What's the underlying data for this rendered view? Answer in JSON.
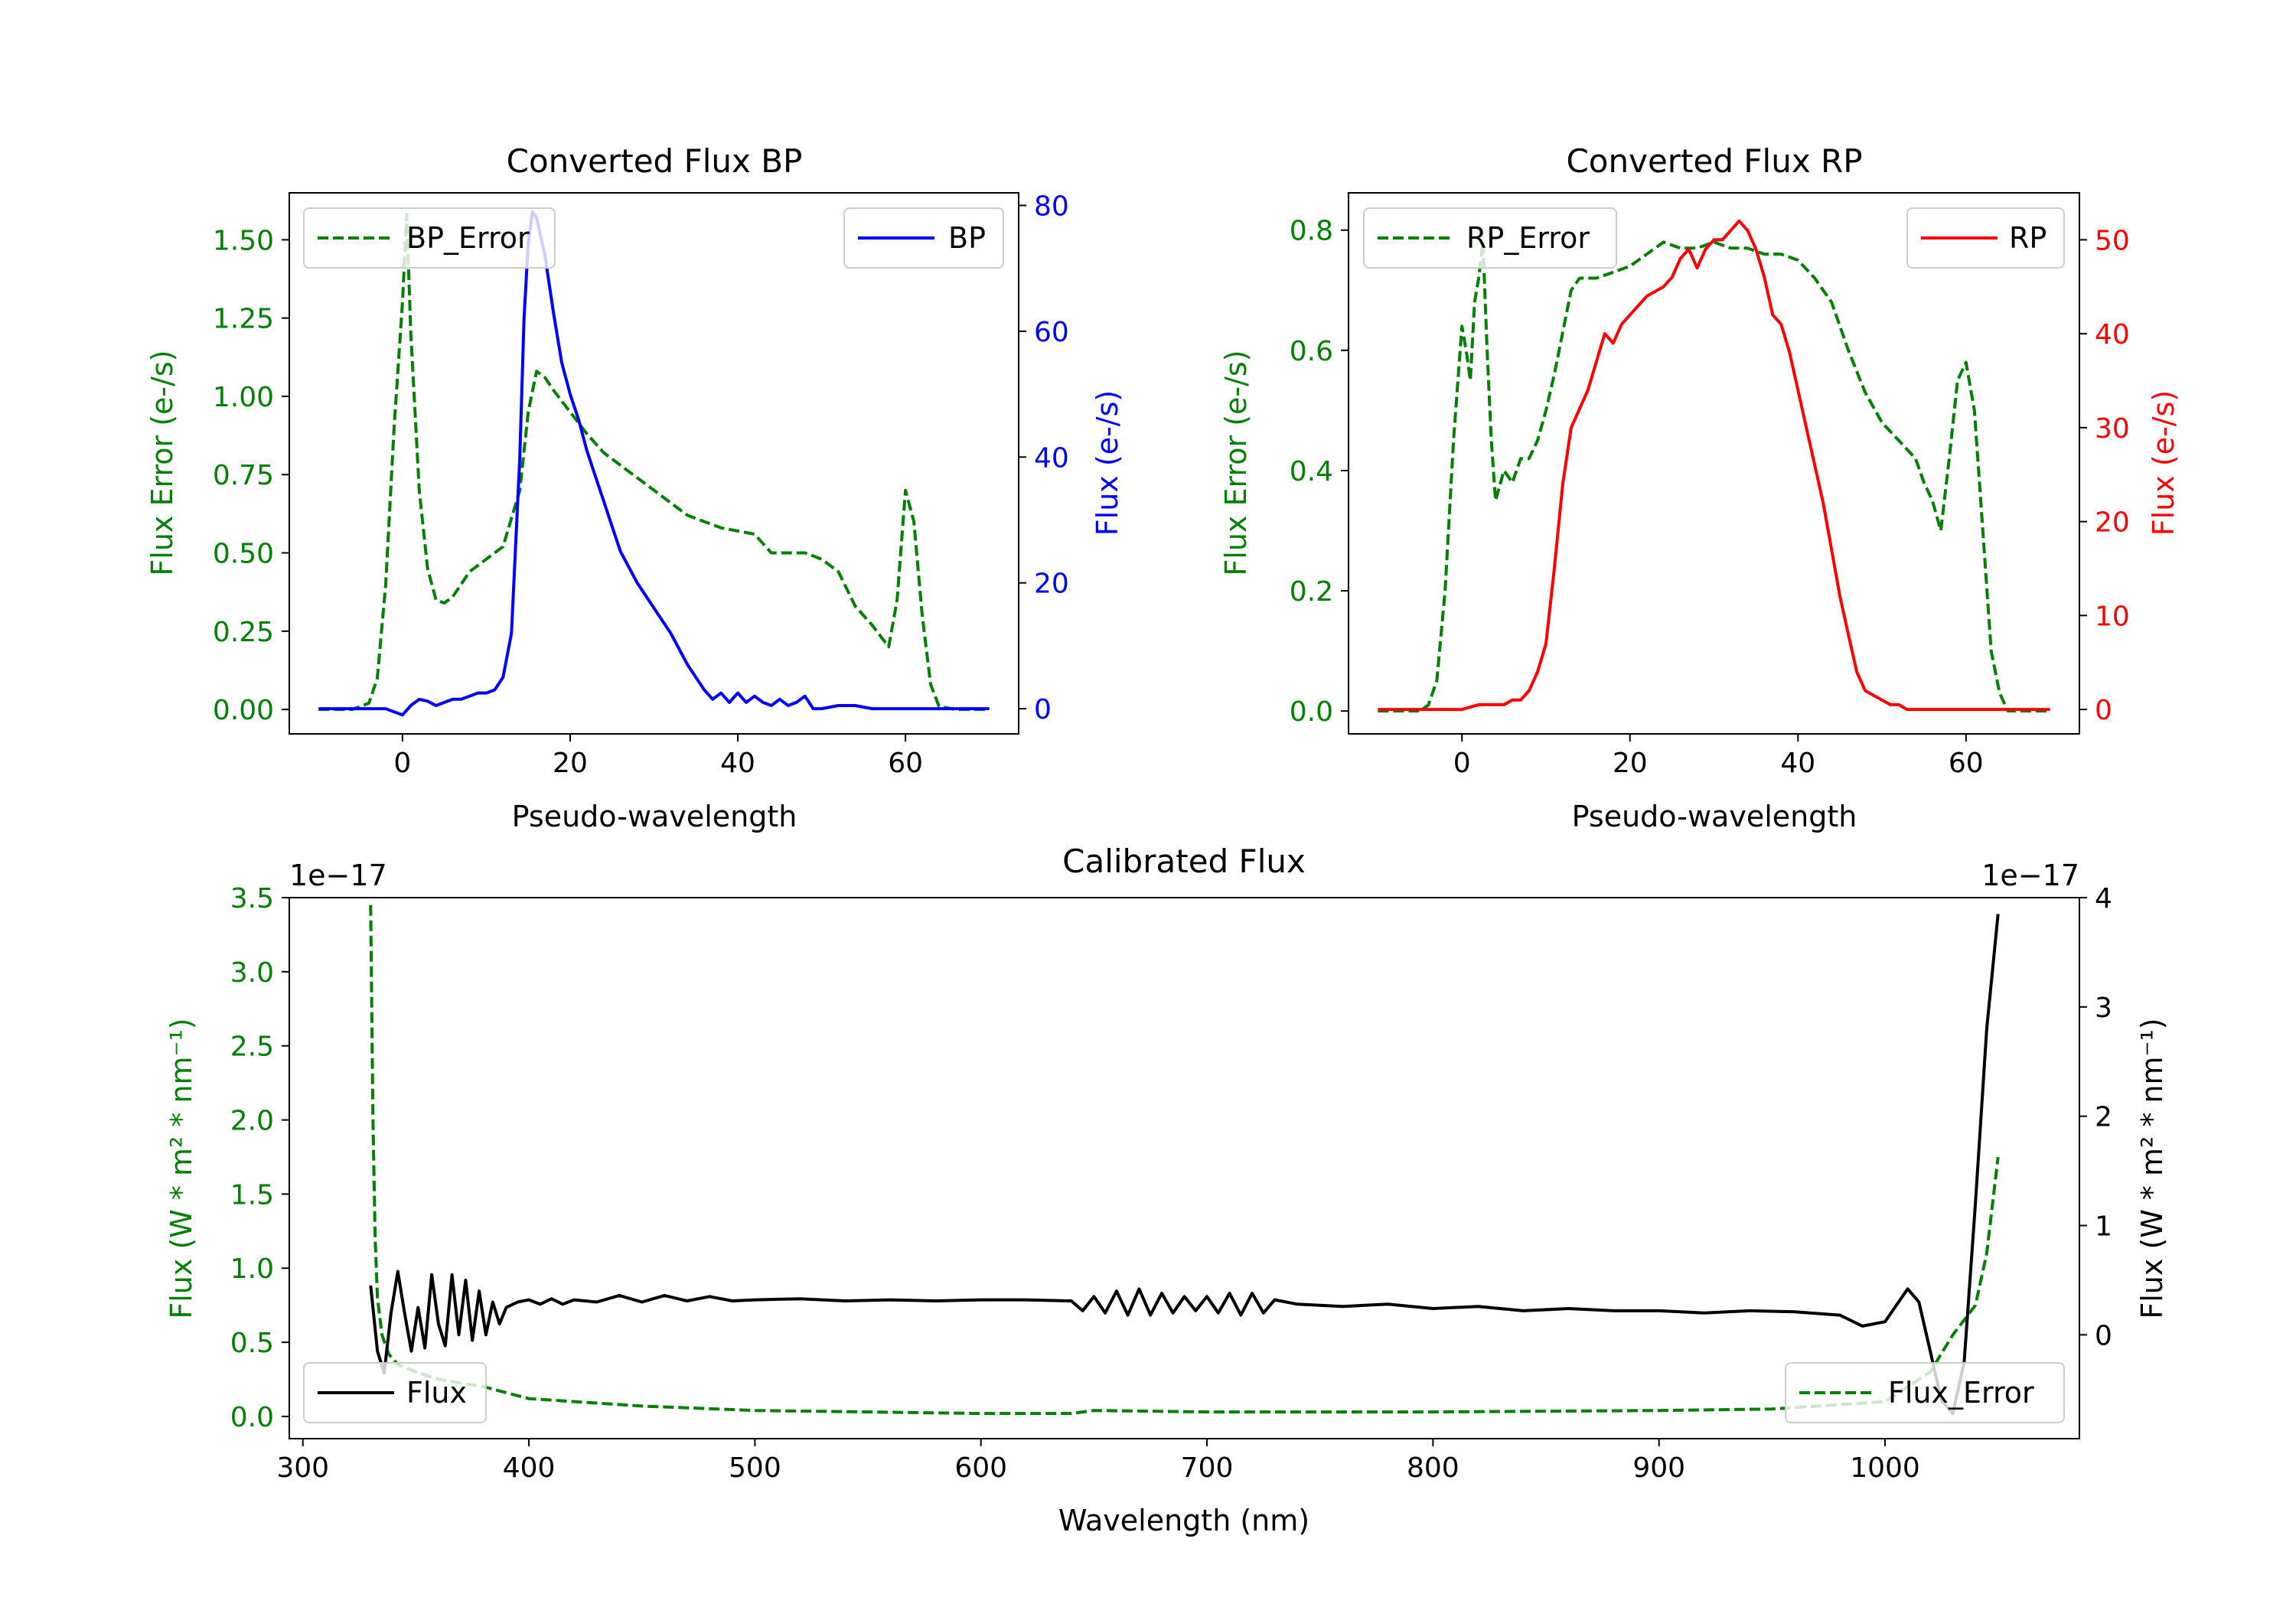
{
  "colors": {
    "error": "#008000",
    "bp": "#0000ff",
    "rp": "#ff0000",
    "flux": "#000000",
    "axis": "#000000",
    "legend_edge": "#cccccc"
  },
  "chart_data": [
    {
      "id": "bp",
      "type": "line",
      "title": "Converted Flux BP",
      "xlabel": "Pseudo-wavelength",
      "xlim": [
        -13.5,
        73.5
      ],
      "xticks": [
        0,
        20,
        40,
        60
      ],
      "left_axis": {
        "label": "Flux Error (e-/s)",
        "ylim": [
          -0.078,
          1.65
        ],
        "ticks": [
          0.0,
          0.25,
          0.5,
          0.75,
          1.0,
          1.25,
          1.5
        ],
        "tick_labels": [
          "0.00",
          "0.25",
          "0.50",
          "0.75",
          "1.00",
          "1.25",
          "1.50"
        ],
        "color_key": "error"
      },
      "right_axis": {
        "label": "Flux (e-/s)",
        "ylim": [
          -4.0,
          82.0
        ],
        "ticks": [
          0,
          20,
          40,
          60,
          80
        ],
        "tick_labels": [
          "0",
          "20",
          "40",
          "60",
          "80"
        ],
        "color_key": "bp"
      },
      "legend_left": {
        "label": "BP_Error",
        "position": "upper left"
      },
      "legend_right": {
        "label": "BP",
        "position": "upper right"
      },
      "series": [
        {
          "name": "BP_Error",
          "axis": "left",
          "style": "dashed",
          "color_key": "error",
          "x": [
            -10,
            -6,
            -4,
            -3,
            -2,
            -1,
            0,
            0.5,
            1,
            2,
            3,
            4,
            5,
            6,
            7,
            8,
            9,
            10,
            12,
            14,
            15,
            16,
            17,
            18,
            20,
            22,
            24,
            26,
            28,
            30,
            32,
            34,
            36,
            38,
            40,
            42,
            44,
            46,
            48,
            50,
            52,
            54,
            56,
            58,
            59,
            60,
            61,
            62,
            63,
            64,
            66,
            70
          ],
          "y": [
            0.0,
            0.0,
            0.02,
            0.1,
            0.4,
            0.9,
            1.3,
            1.58,
            1.2,
            0.7,
            0.45,
            0.35,
            0.34,
            0.36,
            0.4,
            0.44,
            0.46,
            0.48,
            0.52,
            0.7,
            0.95,
            1.08,
            1.06,
            1.02,
            0.95,
            0.88,
            0.82,
            0.78,
            0.74,
            0.7,
            0.66,
            0.62,
            0.6,
            0.58,
            0.57,
            0.56,
            0.5,
            0.5,
            0.5,
            0.48,
            0.44,
            0.33,
            0.27,
            0.2,
            0.35,
            0.7,
            0.6,
            0.3,
            0.08,
            0.01,
            0.0,
            0.0
          ]
        },
        {
          "name": "BP",
          "axis": "right",
          "style": "solid",
          "color_key": "bp",
          "x": [
            -10,
            -2,
            0,
            1,
            2,
            3,
            4,
            5,
            6,
            7,
            8,
            9,
            10,
            11,
            12,
            13,
            14,
            14.5,
            15,
            15.5,
            16,
            17,
            18,
            19,
            20,
            21,
            22,
            23,
            24,
            25,
            26,
            28,
            30,
            32,
            34,
            36,
            37,
            38,
            39,
            40,
            41,
            42,
            43,
            44,
            45,
            46,
            47,
            48,
            49,
            50,
            52,
            54,
            56,
            58,
            60,
            62,
            64,
            66,
            70
          ],
          "y": [
            0,
            0,
            -1,
            0.5,
            1.5,
            1.2,
            0.5,
            1,
            1.5,
            1.5,
            2,
            2.5,
            2.5,
            3,
            5,
            12,
            40,
            62,
            74,
            79,
            78,
            72,
            63,
            55,
            50,
            46,
            41,
            37,
            33,
            29,
            25,
            20,
            16,
            12,
            7,
            3,
            1.5,
            2.5,
            1,
            2.5,
            1,
            2,
            1,
            0.5,
            1.5,
            0.5,
            1,
            2,
            0,
            0,
            0.5,
            0.5,
            0,
            0,
            0,
            0,
            0,
            0,
            0
          ]
        }
      ]
    },
    {
      "id": "rp",
      "type": "line",
      "title": "Converted Flux RP",
      "xlabel": "Pseudo-wavelength",
      "xlim": [
        -13.5,
        73.5
      ],
      "xticks": [
        0,
        20,
        40,
        60
      ],
      "left_axis": {
        "label": "Flux Error (e-/s)",
        "ylim": [
          -0.038,
          0.862
        ],
        "ticks": [
          0.0,
          0.2,
          0.4,
          0.6,
          0.8
        ],
        "tick_labels": [
          "0.0",
          "0.2",
          "0.4",
          "0.6",
          "0.8"
        ],
        "color_key": "error"
      },
      "right_axis": {
        "label": "Flux (e-/s)",
        "ylim": [
          -2.6,
          55.0
        ],
        "ticks": [
          0,
          10,
          20,
          30,
          40,
          50
        ],
        "tick_labels": [
          "0",
          "10",
          "20",
          "30",
          "40",
          "50"
        ],
        "color_key": "rp"
      },
      "legend_left": {
        "label": "RP_Error",
        "position": "upper left"
      },
      "legend_right": {
        "label": "RP",
        "position": "upper right"
      },
      "series": [
        {
          "name": "RP_Error",
          "axis": "left",
          "style": "dashed",
          "color_key": "error",
          "x": [
            -10,
            -5,
            -4,
            -3,
            -2,
            -1,
            0,
            0.5,
            1,
            1.5,
            2,
            2.5,
            3,
            3.5,
            4,
            5,
            6,
            7,
            8,
            9,
            10,
            11,
            12,
            13,
            14,
            15,
            16,
            18,
            20,
            22,
            24,
            26,
            28,
            30,
            32,
            34,
            36,
            38,
            40,
            42,
            44,
            46,
            48,
            50,
            52,
            54,
            55,
            56,
            57,
            58,
            59,
            60,
            61,
            62,
            63,
            64,
            65,
            70
          ],
          "y": [
            0.0,
            0.0,
            0.01,
            0.05,
            0.2,
            0.45,
            0.64,
            0.6,
            0.55,
            0.68,
            0.72,
            0.78,
            0.6,
            0.45,
            0.35,
            0.4,
            0.38,
            0.42,
            0.42,
            0.45,
            0.5,
            0.56,
            0.63,
            0.7,
            0.72,
            0.72,
            0.72,
            0.73,
            0.74,
            0.76,
            0.78,
            0.77,
            0.77,
            0.78,
            0.77,
            0.77,
            0.76,
            0.76,
            0.75,
            0.72,
            0.68,
            0.6,
            0.53,
            0.48,
            0.45,
            0.42,
            0.38,
            0.35,
            0.3,
            0.42,
            0.55,
            0.58,
            0.5,
            0.3,
            0.1,
            0.03,
            0.0,
            0.0
          ]
        },
        {
          "name": "RP",
          "axis": "right",
          "style": "solid",
          "color_key": "rp",
          "x": [
            -10,
            0,
            2,
            3,
            4,
            5,
            6,
            7,
            8,
            9,
            10,
            11,
            12,
            13,
            14,
            15,
            16,
            17,
            18,
            19,
            20,
            21,
            22,
            23,
            24,
            25,
            26,
            27,
            28,
            29,
            30,
            31,
            32,
            33,
            34,
            35,
            36,
            37,
            38,
            39,
            40,
            41,
            42,
            43,
            44,
            45,
            46,
            47,
            48,
            49,
            50,
            51,
            52,
            53,
            54,
            56,
            60,
            70
          ],
          "y": [
            0,
            0,
            0.5,
            0.5,
            0.5,
            0.5,
            1,
            1,
            2,
            4,
            7,
            15,
            24,
            30,
            32,
            34,
            37,
            40,
            39,
            41,
            42,
            43,
            44,
            44.5,
            45,
            46,
            48,
            49,
            47,
            49,
            50,
            50,
            51,
            52,
            51,
            49,
            46,
            42,
            41,
            38,
            34,
            30,
            26,
            22,
            17,
            12,
            8,
            4,
            2,
            1.5,
            1,
            0.5,
            0.5,
            0,
            0,
            0,
            0,
            0
          ]
        }
      ]
    },
    {
      "id": "cal",
      "type": "line",
      "title": "Calibrated Flux",
      "xlabel": "Wavelength (nm)",
      "xlim": [
        294,
        1086
      ],
      "xticks": [
        300,
        400,
        500,
        600,
        700,
        800,
        900,
        1000
      ],
      "left_axis": {
        "label": "Flux (W * m² * nm⁻¹)",
        "offset_label": "1e−17",
        "ylim": [
          -0.15,
          3.5
        ],
        "ticks": [
          0.0,
          0.5,
          1.0,
          1.5,
          2.0,
          2.5,
          3.0,
          3.5
        ],
        "tick_labels": [
          "0.0",
          "0.5",
          "1.0",
          "1.5",
          "2.0",
          "2.5",
          "3.0",
          "3.5"
        ],
        "color_key": "error"
      },
      "right_axis": {
        "label": "Flux (W * m² * nm⁻¹)",
        "offset_label": "1e−17",
        "ylim": [
          -0.95,
          4.0
        ],
        "ticks": [
          0,
          1,
          2,
          3,
          4
        ],
        "tick_labels": [
          "0",
          "1",
          "2",
          "3",
          "4"
        ],
        "color_key": "flux"
      },
      "legend_left": {
        "label": "Flux",
        "position": "lower left"
      },
      "legend_right": {
        "label": "Flux_Error",
        "position": "lower right"
      },
      "series": [
        {
          "name": "Flux_Error",
          "axis": "left",
          "style": "dashed",
          "color_key": "error",
          "x": [
            330,
            331,
            332,
            333,
            335,
            338,
            342,
            350,
            360,
            380,
            400,
            450,
            500,
            550,
            600,
            640,
            650,
            700,
            800,
            900,
            950,
            1000,
            1020,
            1030,
            1040,
            1045,
            1050
          ],
          "y": [
            3.45,
            2.0,
            1.2,
            0.8,
            0.55,
            0.42,
            0.35,
            0.3,
            0.25,
            0.2,
            0.12,
            0.07,
            0.04,
            0.03,
            0.02,
            0.02,
            0.04,
            0.03,
            0.03,
            0.04,
            0.05,
            0.1,
            0.3,
            0.55,
            0.75,
            1.1,
            1.75
          ]
        },
        {
          "name": "Flux",
          "axis": "right",
          "style": "solid",
          "color_key": "flux",
          "x": [
            330,
            333,
            336,
            339,
            342,
            345,
            348,
            351,
            354,
            357,
            360,
            363,
            366,
            369,
            372,
            375,
            378,
            381,
            384,
            387,
            390,
            395,
            400,
            405,
            410,
            415,
            420,
            430,
            440,
            450,
            460,
            470,
            480,
            490,
            500,
            520,
            540,
            560,
            580,
            600,
            620,
            640,
            645,
            650,
            655,
            660,
            665,
            670,
            675,
            680,
            685,
            690,
            695,
            700,
            705,
            710,
            715,
            720,
            725,
            730,
            740,
            760,
            780,
            800,
            820,
            840,
            860,
            880,
            900,
            920,
            940,
            960,
            980,
            990,
            1000,
            1010,
            1015,
            1020,
            1025,
            1030,
            1035,
            1040,
            1045,
            1050
          ],
          "y": [
            0.45,
            -0.15,
            -0.35,
            0.2,
            0.58,
            0.2,
            -0.15,
            0.25,
            -0.12,
            0.55,
            0.1,
            -0.1,
            0.55,
            0.0,
            0.5,
            -0.05,
            0.4,
            0.0,
            0.3,
            0.1,
            0.25,
            0.3,
            0.32,
            0.28,
            0.33,
            0.28,
            0.32,
            0.3,
            0.36,
            0.3,
            0.36,
            0.31,
            0.35,
            0.31,
            0.32,
            0.33,
            0.31,
            0.32,
            0.31,
            0.32,
            0.32,
            0.31,
            0.22,
            0.35,
            0.2,
            0.4,
            0.18,
            0.42,
            0.18,
            0.38,
            0.2,
            0.35,
            0.22,
            0.35,
            0.2,
            0.38,
            0.18,
            0.38,
            0.2,
            0.32,
            0.28,
            0.26,
            0.28,
            0.24,
            0.26,
            0.22,
            0.24,
            0.22,
            0.22,
            0.2,
            0.22,
            0.21,
            0.18,
            0.08,
            0.12,
            0.42,
            0.3,
            -0.15,
            -0.6,
            -0.72,
            -0.25,
            1.2,
            2.8,
            3.85
          ]
        }
      ]
    }
  ]
}
